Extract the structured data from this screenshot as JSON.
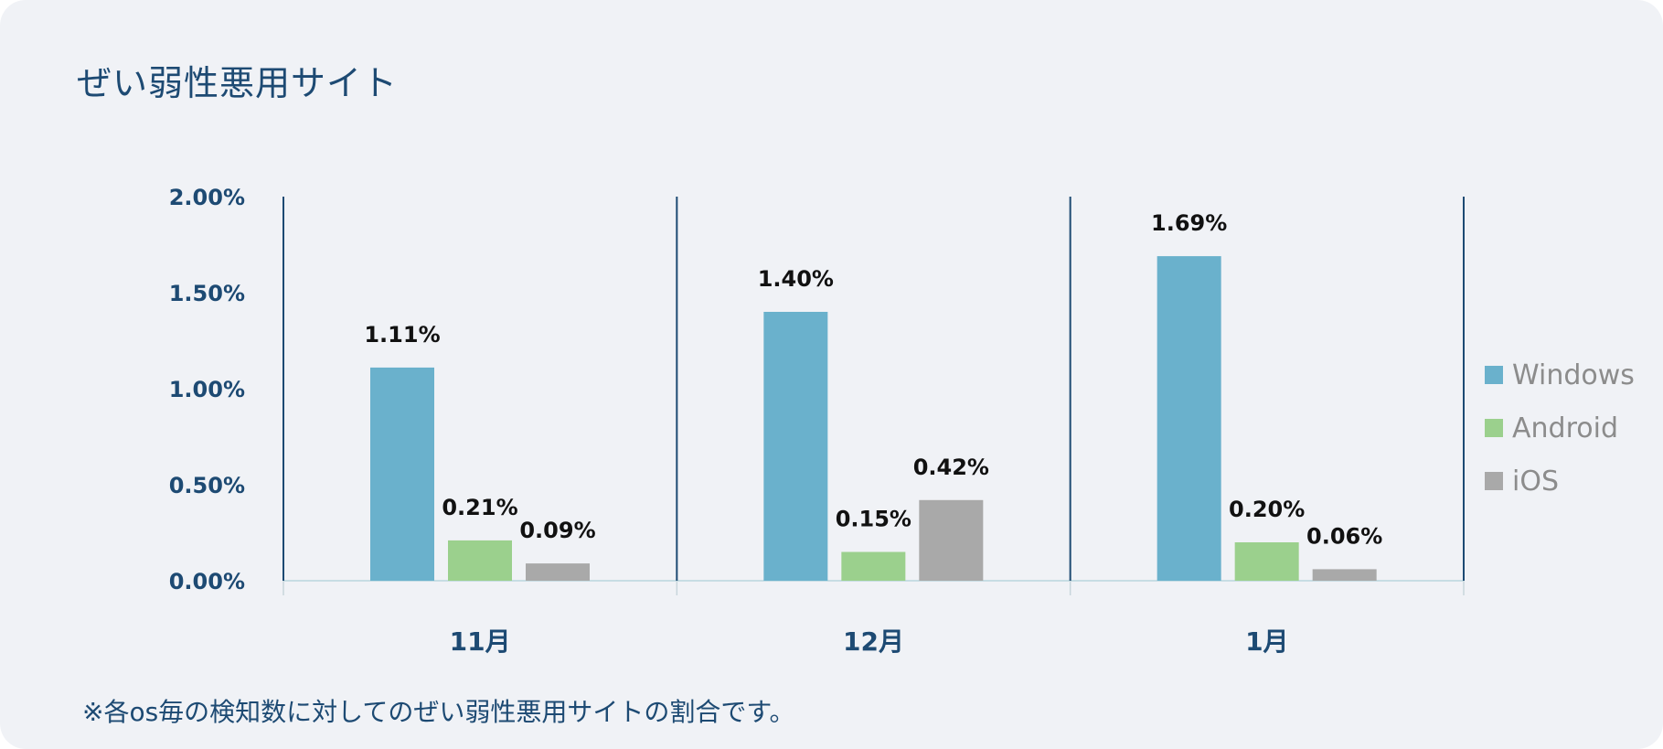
{
  "title": "ぜい弱性悪用サイト",
  "footnote": "※各os毎の検知数に対してのぜい弱性悪用サイトの割合です。",
  "colors": {
    "windows": "#6ab1cc",
    "android": "#9bd08d",
    "ios": "#a9a9a9",
    "axis": "#1d4a73"
  },
  "chart_data": {
    "type": "bar",
    "title": "ぜい弱性悪用サイト",
    "categories": [
      "11月",
      "12月",
      "1月"
    ],
    "series": [
      {
        "name": "Windows",
        "values": [
          1.11,
          1.4,
          1.69
        ],
        "labels": [
          "1.11%",
          "1.40%",
          "1.69%"
        ],
        "color": "#6ab1cc"
      },
      {
        "name": "Android",
        "values": [
          0.21,
          0.15,
          0.2
        ],
        "labels": [
          "0.21%",
          "0.15%",
          "0.20%"
        ],
        "color": "#9bd08d"
      },
      {
        "name": "iOS",
        "values": [
          0.09,
          0.42,
          0.06
        ],
        "labels": [
          "0.09%",
          "0.42%",
          "0.06%"
        ],
        "color": "#a9a9a9"
      }
    ],
    "ylim": [
      0,
      2.0
    ],
    "yticks": [
      "0.00%",
      "0.50%",
      "1.00%",
      "1.50%",
      "2.00%"
    ],
    "ytick_values": [
      0,
      0.5,
      1.0,
      1.5,
      2.0
    ],
    "xlabel": "",
    "ylabel": "",
    "legend_position": "right",
    "grid": false
  }
}
